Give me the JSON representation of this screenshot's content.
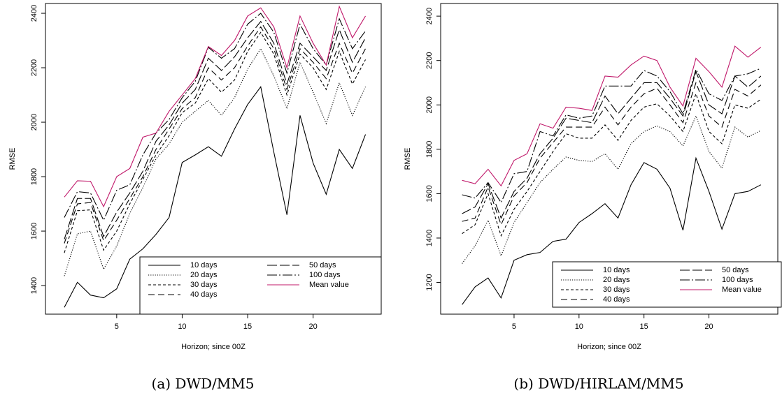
{
  "chart_data": [
    {
      "type": "line",
      "caption": "(a) DWD/MM5",
      "x_label": "Horizon; since 00Z",
      "y_label": "RMSE",
      "x": [
        1,
        2,
        3,
        4,
        5,
        6,
        7,
        8,
        9,
        10,
        11,
        12,
        13,
        14,
        15,
        16,
        17,
        18,
        19,
        20,
        21,
        22,
        23,
        24
      ],
      "xlim": [
        -0.44,
        25.2
      ],
      "xticks": [
        5,
        10,
        15,
        20
      ],
      "ylim": [
        1295,
        2436
      ],
      "yticks": [
        1400,
        1600,
        1800,
        2000,
        2200,
        2400
      ],
      "legend": "bottom-right",
      "series": [
        {
          "name": "10 days",
          "color": "#000000",
          "values": [
            1320,
            1412,
            1365,
            1355,
            1388,
            1497,
            1535,
            1588,
            1650,
            1852,
            1880,
            1910,
            1875,
            1975,
            2065,
            2130,
            1890,
            1660,
            2025,
            1850,
            1735,
            1900,
            1830,
            1955
          ]
        },
        {
          "name": "20 days",
          "color": "#000000",
          "values": [
            1435,
            1590,
            1600,
            1460,
            1545,
            1665,
            1760,
            1865,
            1920,
            2000,
            2040,
            2080,
            2025,
            2090,
            2195,
            2270,
            2170,
            2050,
            2220,
            2110,
            1995,
            2145,
            2025,
            2130
          ]
        },
        {
          "name": "30 days",
          "color": "#000000",
          "values": [
            1520,
            1675,
            1678,
            1530,
            1600,
            1700,
            1790,
            1880,
            1950,
            2035,
            2070,
            2160,
            2110,
            2155,
            2260,
            2330,
            2250,
            2100,
            2250,
            2200,
            2120,
            2260,
            2140,
            2230
          ]
        },
        {
          "name": "40 days",
          "color": "#000000",
          "values": [
            1555,
            1700,
            1705,
            1565,
            1640,
            1720,
            1800,
            1900,
            1975,
            2050,
            2090,
            2200,
            2155,
            2200,
            2280,
            2350,
            2270,
            2120,
            2270,
            2220,
            2160,
            2290,
            2180,
            2270
          ]
        },
        {
          "name": "50 days",
          "color": "#000000",
          "values": [
            1570,
            1720,
            1720,
            1580,
            1670,
            1740,
            1820,
            1930,
            1990,
            2070,
            2120,
            2235,
            2190,
            2240,
            2310,
            2370,
            2290,
            2140,
            2290,
            2240,
            2190,
            2340,
            2220,
            2310
          ]
        },
        {
          "name": "100 days",
          "color": "#000000",
          "values": [
            1650,
            1745,
            1740,
            1640,
            1750,
            1770,
            1880,
            1960,
            2010,
            2090,
            2150,
            2275,
            2235,
            2270,
            2360,
            2400,
            2330,
            2180,
            2360,
            2270,
            2210,
            2380,
            2270,
            2335
          ]
        },
        {
          "name": "Mean value",
          "color": "#c0186a",
          "values": [
            1725,
            1785,
            1783,
            1690,
            1800,
            1830,
            1945,
            1960,
            2040,
            2100,
            2160,
            2278,
            2245,
            2300,
            2390,
            2420,
            2350,
            2200,
            2390,
            2290,
            2210,
            2425,
            2310,
            2390
          ]
        }
      ]
    },
    {
      "type": "line",
      "caption": "(b) DWD/HIRLAM/MM5",
      "x_label": "Horizon; since 00Z",
      "y_label": "RMSE",
      "x": [
        1,
        2,
        3,
        4,
        5,
        6,
        7,
        8,
        9,
        10,
        11,
        12,
        13,
        14,
        15,
        16,
        17,
        18,
        19,
        20,
        21,
        22,
        23,
        24
      ],
      "xlim": [
        -0.65,
        25.3
      ],
      "xticks": [
        5,
        10,
        15,
        20
      ],
      "ylim": [
        1057,
        2457
      ],
      "yticks": [
        1200,
        1400,
        1600,
        1800,
        2000,
        2200,
        2400
      ],
      "legend": "bottom-right",
      "series": [
        {
          "name": "10 days",
          "color": "#000000",
          "values": [
            1100,
            1180,
            1220,
            1130,
            1300,
            1325,
            1335,
            1385,
            1395,
            1470,
            1510,
            1555,
            1490,
            1640,
            1740,
            1710,
            1625,
            1435,
            1760,
            1610,
            1440,
            1600,
            1610,
            1640
          ]
        },
        {
          "name": "20 days",
          "color": "#000000",
          "values": [
            1285,
            1365,
            1480,
            1320,
            1470,
            1560,
            1650,
            1710,
            1765,
            1750,
            1745,
            1780,
            1710,
            1825,
            1880,
            1905,
            1880,
            1815,
            1950,
            1790,
            1715,
            1900,
            1855,
            1885
          ]
        },
        {
          "name": "30 days",
          "color": "#000000",
          "values": [
            1420,
            1460,
            1600,
            1410,
            1530,
            1610,
            1700,
            1790,
            1870,
            1850,
            1850,
            1910,
            1840,
            1930,
            1990,
            2005,
            1950,
            1880,
            2050,
            1880,
            1825,
            2000,
            1985,
            2025
          ]
        },
        {
          "name": "40 days",
          "color": "#000000",
          "values": [
            1475,
            1490,
            1630,
            1460,
            1590,
            1650,
            1760,
            1830,
            1900,
            1900,
            1900,
            1990,
            1910,
            1990,
            2050,
            2075,
            2000,
            1920,
            2100,
            1950,
            1900,
            2070,
            2040,
            2090
          ]
        },
        {
          "name": "50 days",
          "color": "#000000",
          "values": [
            1510,
            1540,
            1645,
            1490,
            1610,
            1670,
            1780,
            1850,
            1940,
            1930,
            1920,
            2040,
            1960,
            2030,
            2100,
            2100,
            2030,
            1950,
            2150,
            2000,
            1960,
            2130,
            2080,
            2130
          ]
        },
        {
          "name": "100 days",
          "color": "#000000",
          "values": [
            1595,
            1580,
            1650,
            1560,
            1690,
            1700,
            1880,
            1860,
            1955,
            1940,
            1950,
            2085,
            2085,
            2085,
            2155,
            2130,
            2060,
            1960,
            2160,
            2050,
            2020,
            2130,
            2140,
            2165
          ]
        },
        {
          "name": "Mean value",
          "color": "#c0186a",
          "values": [
            1660,
            1645,
            1710,
            1635,
            1750,
            1780,
            1915,
            1895,
            1990,
            1985,
            1975,
            2130,
            2125,
            2180,
            2220,
            2200,
            2080,
            1995,
            2210,
            2150,
            2080,
            2265,
            2215,
            2260
          ]
        }
      ]
    }
  ]
}
